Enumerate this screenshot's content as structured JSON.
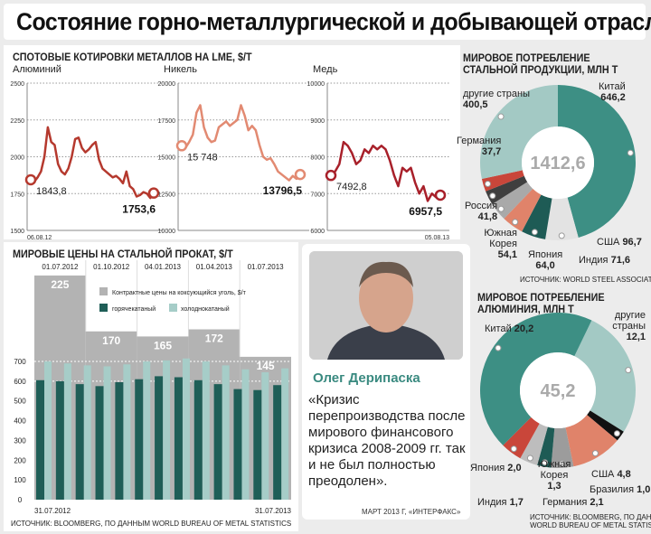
{
  "title": "Состояние горно-металлургической и добывающей отраслей",
  "colors": {
    "line_aluminum": "#b5392e",
    "line_nickel": "#e28a72",
    "line_copper": "#a8202a",
    "hot_rolled": "#1f5e57",
    "cold_rolled": "#a6cdc8",
    "coal": "#b3b3b3",
    "accent": "#3a8a80"
  },
  "chart_data": [
    {
      "type": "line",
      "title": "СПОТОВЫЕ КОТИРОВКИ МЕТАЛЛОВ НА LME, $/Т",
      "series_label": "Алюминий",
      "ylim": [
        1500,
        2500
      ],
      "yticks": [
        "2500",
        "2250",
        "2000",
        "1750",
        "1500"
      ],
      "grid": true,
      "start_label": "1843,8",
      "end_label": "1753,6",
      "x_start": "06.08.12",
      "values": [
        1843.8,
        1830,
        1860,
        1900,
        2000,
        2200,
        2100,
        2080,
        1950,
        1900,
        1880,
        1920,
        2000,
        2120,
        2130,
        2060,
        2030,
        2050,
        2080,
        2100,
        1980,
        1920,
        1900,
        1880,
        1860,
        1870,
        1850,
        1820,
        1900,
        1800,
        1780,
        1730,
        1740,
        1760,
        1750,
        1720,
        1753.6
      ]
    },
    {
      "type": "line",
      "series_label": "Никель",
      "ylim": [
        10000,
        20000
      ],
      "yticks": [
        "20000",
        "17500",
        "15000",
        "12500",
        "10000"
      ],
      "grid": true,
      "start_label": "15 748",
      "end_label": "13796,5",
      "values": [
        15748,
        15600,
        16000,
        16500,
        18000,
        18500,
        17000,
        16300,
        16000,
        16100,
        17000,
        17200,
        17400,
        17100,
        17300,
        17500,
        18500,
        17800,
        16800,
        17100,
        16800,
        15800,
        15000,
        14800,
        14900,
        14500,
        14000,
        13800,
        13600,
        13400,
        13700,
        13500,
        13796.5
      ]
    },
    {
      "type": "line",
      "series_label": "Медь",
      "ylim": [
        6000,
        10000
      ],
      "yticks": [
        "10000",
        "9000",
        "8000",
        "7000",
        "6000"
      ],
      "grid": true,
      "start_label": "7492,8",
      "end_label": "6957,5",
      "x_end": "05.08.13",
      "values": [
        7492.8,
        7600,
        7800,
        8400,
        8300,
        8100,
        7800,
        7900,
        8200,
        8100,
        8300,
        8200,
        8300,
        8200,
        7900,
        7500,
        7200,
        7700,
        7600,
        7700,
        7300,
        7000,
        7200,
        6800,
        7000,
        6900,
        6957.5
      ]
    },
    {
      "type": "bar",
      "title": "МИРОВЫЕ ЦЕНЫ НА СТАЛЬНОЙ ПРОКАТ, $/Т",
      "ylim": [
        0,
        700
      ],
      "yticks": [
        "700",
        "600",
        "500",
        "400",
        "300",
        "200",
        "100",
        "0"
      ],
      "x_start": "31.07.2012",
      "x_end": "31.07.2013",
      "series": [
        {
          "name": "горячекатаный",
          "values": [
            605,
            600,
            585,
            575,
            595,
            610,
            625,
            620,
            605,
            585,
            560,
            555,
            580
          ]
        },
        {
          "name": "холоднокатаный",
          "values": [
            700,
            690,
            680,
            675,
            685,
            700,
            705,
            715,
            700,
            680,
            660,
            645,
            665
          ]
        }
      ],
      "coal": {
        "name": "Контрактные цены на коксующийся уголь, $/т",
        "dates": [
          "01.07.2012",
          "01.10.2012",
          "04.01.2013",
          "01.04.2013",
          "01.07.2013"
        ],
        "values": [
          225,
          170,
          165,
          172,
          145
        ],
        "labels": [
          "225",
          "170",
          "165",
          "172",
          "145"
        ]
      },
      "source": "ИСТОЧНИК: BLOOMBERG, ПО ДАННЫМ WORLD BUREAU OF METAL STATISTICS"
    },
    {
      "type": "pie",
      "title": "МИРОВОЕ ПОТРЕБЛЕНИЕ СТАЛЬНОЙ ПРОДУКЦИИ, МЛН Т",
      "total": "1412,6",
      "slices": [
        {
          "name": "Китай",
          "value": 646.2,
          "label": "646,2",
          "color": "#3d8f84"
        },
        {
          "name": "США",
          "value": 96.7,
          "label": "96,7",
          "color": "#e3e3e3"
        },
        {
          "name": "Индия",
          "value": 71.6,
          "label": "71,6",
          "color": "#1e5b55"
        },
        {
          "name": "Япония",
          "value": 64.0,
          "label": "64,0",
          "color": "#e0836a"
        },
        {
          "name": "Южная Корея",
          "value": 54.1,
          "label": "54,1",
          "color": "#a9a9a9"
        },
        {
          "name": "Россия",
          "value": 41.8,
          "label": "41,8",
          "color": "#3f3f3f"
        },
        {
          "name": "Германия",
          "value": 37.7,
          "label": "37,7",
          "color": "#c9463a"
        },
        {
          "name": "другие страны",
          "value": 400.5,
          "label": "400,5",
          "color": "#a3c9c4"
        }
      ],
      "source": "ИСТОЧНИК: WORLD STEEL ASSOCIATION"
    },
    {
      "type": "pie",
      "title": "МИРОВОЕ ПОТРЕБЛЕНИЕ АЛЮМИНИЯ, МЛН Т",
      "total": "45,2",
      "slices": [
        {
          "name": "другие страны",
          "value": 12.1,
          "label": "12,1",
          "color": "#a3c9c4"
        },
        {
          "name": "Бразилия",
          "value": 1.0,
          "label": "1,0",
          "color": "#111111"
        },
        {
          "name": "США",
          "value": 4.8,
          "label": "4,8",
          "color": "#e0836a"
        },
        {
          "name": "Германия",
          "value": 2.1,
          "label": "2,1",
          "color": "#9c9c9c"
        },
        {
          "name": "Южная Корея",
          "value": 1.3,
          "label": "1,3",
          "color": "#1e5b55"
        },
        {
          "name": "Индия",
          "value": 1.7,
          "label": "1,7",
          "color": "#bdbdbd"
        },
        {
          "name": "Япония",
          "value": 2.0,
          "label": "2,0",
          "color": "#c9463a"
        },
        {
          "name": "Китай",
          "value": 20.2,
          "label": "20,2",
          "color": "#3d8f84"
        }
      ],
      "source_1": "ИСТОЧНИК: BLOOMBERG, ПО ДАННЫМ",
      "source_2": "WORLD BUREAU OF METAL STATISTICS"
    }
  ],
  "quote": {
    "person": "Олег Дерипаска",
    "text": "«Кризис перепроизводства после мирового финансового кризиса 2008-2009 гг. так и не был полностью преодолен».",
    "source": "МАРТ 2013 Г, «ИНТЕРФАКС»"
  }
}
